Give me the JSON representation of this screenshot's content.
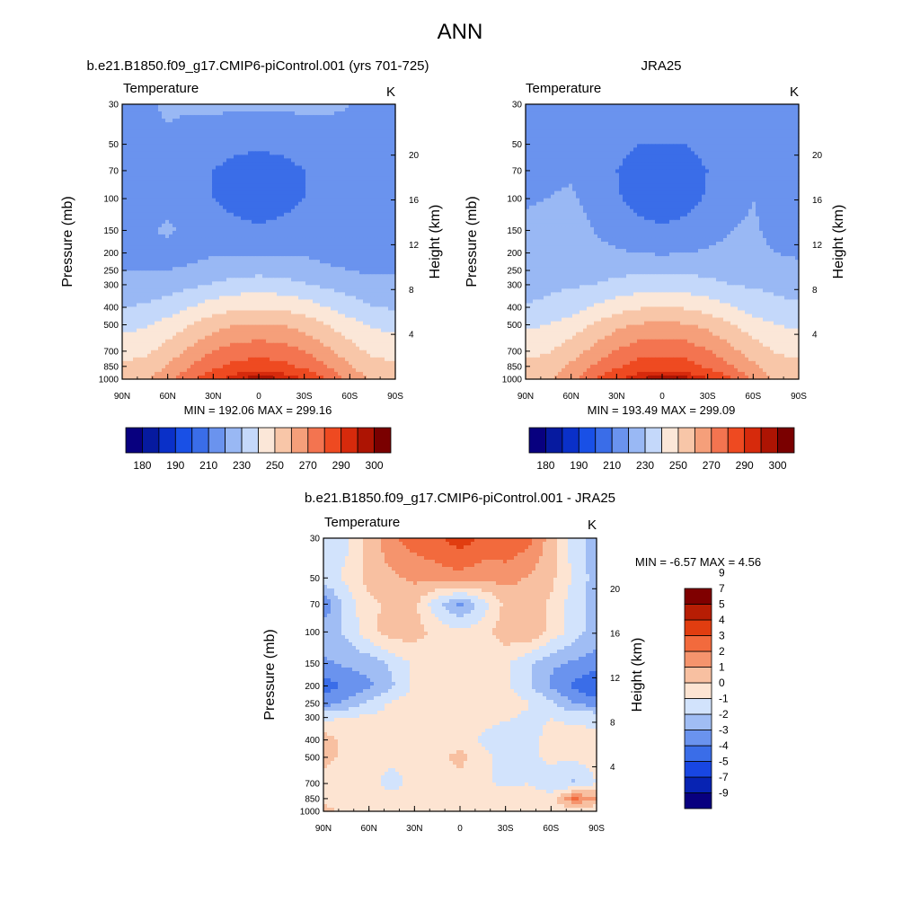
{
  "figure": {
    "title": "ANN",
    "colors": {
      "abs_palette": [
        "#08007f",
        "#061a9f",
        "#0a30c8",
        "#1950e6",
        "#3a6de8",
        "#6a93ee",
        "#99b8f4",
        "#c4d8fa",
        "#fbe7d8",
        "#f8c6a8",
        "#f59f7a",
        "#f37450",
        "#ee4a21",
        "#d62a0c",
        "#ad1403",
        "#7a0000"
      ],
      "diff_palette": [
        "#08007f",
        "#0723b3",
        "#1846e2",
        "#3a6de8",
        "#6a93ee",
        "#a0bdf4",
        "#d2e3fc",
        "#fde4d2",
        "#f8c0a1",
        "#f5946d",
        "#f26a3d",
        "#e13d10",
        "#b71d04",
        "#7f0000"
      ]
    },
    "panels": [
      {
        "title": "b.e21.B1850.f09_g17.CMIP6-piControl.001 (yrs 701-725)",
        "left_label": "Temperature",
        "right_label": "K",
        "min_max": "MIN = 192.06  MAX = 299.16"
      },
      {
        "title": "JRA25",
        "left_label": "Temperature",
        "right_label": "K",
        "min_max": "MIN = 193.49  MAX = 299.09"
      },
      {
        "title": "b.e21.B1850.f09_g17.CMIP6-piControl.001 - JRA25",
        "left_label": "Temperature",
        "right_label": "K",
        "min_max": "MIN =  -6.57  MAX =   4.56"
      }
    ]
  },
  "chart_data": [
    {
      "type": "heatmap",
      "name": "model",
      "xlabel": "",
      "ylabel": "Pressure (mb)",
      "y2label": "Height (km)",
      "x_ticks": [
        "90N",
        "60N",
        "30N",
        "0",
        "30S",
        "60S",
        "90S"
      ],
      "y_ticks": [
        30,
        50,
        70,
        100,
        150,
        200,
        250,
        300,
        400,
        500,
        700,
        850,
        1000
      ],
      "y2_ticks": [
        4,
        8,
        12,
        16,
        20
      ],
      "xlim": [
        90,
        -90
      ],
      "ylim": [
        1000,
        30
      ],
      "y_scale": "log",
      "colorbar_labels": [
        180,
        190,
        210,
        230,
        250,
        270,
        290,
        300
      ],
      "values_grid": {
        "lats": [
          90,
          75,
          60,
          45,
          30,
          15,
          0,
          -15,
          -30,
          -45,
          -60,
          -75,
          -90
        ],
        "plev": [
          30,
          50,
          70,
          100,
          150,
          200,
          250,
          300,
          400,
          500,
          700,
          850,
          1000
        ],
        "rows": [
          [
            218,
            219,
            221,
            221,
            222,
            222,
            222,
            222,
            222,
            221,
            220,
            214,
            213
          ],
          [
            218,
            218,
            219,
            217,
            214,
            212,
            212,
            212,
            214,
            217,
            219,
            214,
            213
          ],
          [
            218,
            218,
            218,
            215,
            210,
            207,
            205,
            207,
            210,
            215,
            219,
            214,
            213
          ],
          [
            218,
            218,
            218,
            216,
            210,
            206,
            203,
            206,
            210,
            216,
            219,
            214,
            213
          ],
          [
            218,
            219,
            221,
            218,
            216,
            213,
            212,
            213,
            216,
            218,
            218,
            214,
            213
          ],
          [
            218,
            218,
            218,
            218,
            219,
            219,
            219,
            219,
            219,
            218,
            218,
            214,
            213
          ],
          [
            220,
            220,
            220,
            221,
            224,
            226,
            227,
            226,
            224,
            221,
            220,
            218,
            217
          ],
          [
            225,
            225,
            226,
            228,
            231,
            234,
            235,
            234,
            231,
            228,
            226,
            226,
            225
          ],
          [
            230,
            231,
            234,
            240,
            245,
            248,
            249,
            248,
            245,
            240,
            234,
            230,
            229
          ],
          [
            237,
            239,
            244,
            250,
            256,
            260,
            261,
            260,
            256,
            250,
            244,
            239,
            237
          ],
          [
            246,
            248,
            254,
            262,
            270,
            275,
            276,
            275,
            270,
            262,
            254,
            248,
            246
          ],
          [
            252,
            254,
            261,
            270,
            278,
            283,
            285,
            283,
            278,
            270,
            261,
            254,
            252
          ],
          [
            255,
            258,
            266,
            278,
            288,
            295,
            298,
            296,
            290,
            280,
            266,
            258,
            256
          ]
        ]
      },
      "min": 192.06,
      "max": 299.16
    },
    {
      "type": "heatmap",
      "name": "obs",
      "xlabel": "",
      "ylabel": "Pressure (mb)",
      "y2label": "Height (km)",
      "x_ticks": [
        "90N",
        "60N",
        "30N",
        "0",
        "30S",
        "60S",
        "90S"
      ],
      "y_ticks": [
        30,
        50,
        70,
        100,
        150,
        200,
        250,
        300,
        400,
        500,
        700,
        850,
        1000
      ],
      "y2_ticks": [
        4,
        8,
        12,
        16,
        20
      ],
      "xlim": [
        90,
        -90
      ],
      "ylim": [
        1000,
        30
      ],
      "y_scale": "log",
      "colorbar_labels": [
        180,
        190,
        210,
        230,
        250,
        270,
        290,
        300
      ],
      "values_grid": {
        "lats": [
          90,
          75,
          60,
          45,
          30,
          15,
          0,
          -15,
          -30,
          -45,
          -60,
          -75,
          -90
        ],
        "plev": [
          30,
          50,
          70,
          100,
          150,
          200,
          250,
          300,
          400,
          500,
          700,
          850,
          1000
        ],
        "rows": [
          [
            218,
            219,
            220,
            220,
            220,
            220,
            220,
            220,
            220,
            220,
            219,
            215,
            214
          ],
          [
            218,
            218,
            219,
            217,
            213,
            210,
            210,
            210,
            213,
            217,
            219,
            216,
            215
          ],
          [
            219,
            219,
            219,
            215,
            210,
            206,
            205,
            206,
            210,
            215,
            219,
            216,
            215
          ],
          [
            219,
            220,
            221,
            217,
            211,
            206,
            203,
            206,
            211,
            217,
            220,
            217,
            216
          ],
          [
            222,
            224,
            225,
            220,
            217,
            213,
            212,
            213,
            217,
            220,
            221,
            218,
            217
          ],
          [
            222,
            224,
            224,
            222,
            221,
            220,
            219,
            220,
            221,
            222,
            222,
            220,
            219
          ],
          [
            222,
            224,
            225,
            226,
            227,
            228,
            228,
            228,
            227,
            226,
            225,
            223,
            222
          ],
          [
            226,
            228,
            229,
            230,
            233,
            235,
            236,
            235,
            233,
            230,
            229,
            228,
            227
          ],
          [
            231,
            232,
            235,
            241,
            246,
            249,
            250,
            249,
            246,
            241,
            235,
            232,
            231
          ],
          [
            238,
            240,
            245,
            251,
            257,
            261,
            262,
            261,
            257,
            251,
            245,
            240,
            238
          ],
          [
            247,
            249,
            255,
            263,
            271,
            276,
            277,
            276,
            271,
            263,
            255,
            249,
            247
          ],
          [
            253,
            255,
            262,
            271,
            279,
            284,
            286,
            284,
            279,
            271,
            262,
            255,
            253
          ],
          [
            256,
            259,
            267,
            279,
            289,
            296,
            298,
            297,
            291,
            281,
            267,
            259,
            257
          ]
        ]
      },
      "min": 193.49,
      "max": 299.09
    },
    {
      "type": "heatmap",
      "name": "diff",
      "xlabel": "",
      "ylabel": "Pressure (mb)",
      "y2label": "Height (km)",
      "x_ticks": [
        "90N",
        "60N",
        "30N",
        "0",
        "30S",
        "60S",
        "90S"
      ],
      "y_ticks": [
        30,
        50,
        70,
        100,
        150,
        200,
        250,
        300,
        400,
        500,
        700,
        850,
        1000
      ],
      "y2_ticks": [
        4,
        8,
        12,
        16,
        20
      ],
      "xlim": [
        90,
        -90
      ],
      "ylim": [
        1000,
        30
      ],
      "y_scale": "log",
      "colorbar_labels": [
        -9,
        -7,
        -5,
        -4,
        -3,
        -2,
        -1,
        0,
        1,
        2,
        3,
        4,
        5,
        7,
        9
      ],
      "values_grid": {
        "lats": [
          90,
          75,
          60,
          45,
          30,
          15,
          0,
          -15,
          -30,
          -45,
          -60,
          -75,
          -90
        ],
        "plev": [
          30,
          50,
          70,
          100,
          150,
          200,
          250,
          300,
          400,
          500,
          700,
          850,
          1000
        ],
        "rows": [
          [
            -1.5,
            -1.2,
            0.3,
            1.8,
            2.5,
            2.8,
            3.6,
            2.8,
            3.0,
            2.4,
            0.5,
            -1.5,
            -2.5
          ],
          [
            -1.5,
            -0.8,
            0.4,
            0.8,
            1.2,
            1.5,
            1.6,
            1.4,
            1.3,
            0.9,
            0.3,
            -1.2,
            -2.5
          ],
          [
            -3.8,
            -1.5,
            -0.3,
            0.3,
            0.2,
            -1.8,
            -3.2,
            -1.5,
            0.3,
            0.8,
            -0.2,
            -1.5,
            -2.5
          ],
          [
            -2.5,
            -1.8,
            -0.4,
            0.6,
            0.4,
            -0.3,
            -0.8,
            -0.4,
            0.6,
            0.9,
            -0.3,
            -1.5,
            -2.5
          ],
          [
            -3.2,
            -2.8,
            -2.6,
            -1.8,
            -0.8,
            -0.4,
            -0.3,
            -0.5,
            -0.8,
            -1.8,
            -2.8,
            -3.2,
            -3.5
          ],
          [
            -4.6,
            -3.8,
            -3.2,
            -2.2,
            -0.8,
            -0.4,
            -0.2,
            -0.4,
            -0.8,
            -1.8,
            -3.2,
            -4.2,
            -5.2
          ],
          [
            -3.5,
            -2.8,
            -1.8,
            -0.8,
            -0.4,
            -0.2,
            -0.2,
            -0.2,
            -0.4,
            -0.9,
            -1.8,
            -3.0,
            -3.5
          ],
          [
            -1.2,
            -1.0,
            -0.8,
            -0.7,
            -0.6,
            -0.3,
            -0.3,
            -0.6,
            -0.9,
            -1.2,
            -1.0,
            -1.2,
            -1.2
          ],
          [
            0.5,
            -0.4,
            -0.4,
            -0.6,
            -0.6,
            -0.5,
            -0.6,
            -1.2,
            -1.6,
            -1.2,
            -0.8,
            -0.6,
            -0.8
          ],
          [
            0.4,
            -0.3,
            -0.6,
            -0.8,
            -0.5,
            -0.4,
            0.4,
            -0.7,
            -1.4,
            -1.2,
            -0.8,
            -0.8,
            -0.6
          ],
          [
            -0.5,
            -0.5,
            -0.7,
            -1.4,
            -0.7,
            -0.5,
            -0.5,
            -0.8,
            -1.2,
            -1.0,
            -1.6,
            -2.2,
            -1.0
          ],
          [
            -0.3,
            -0.2,
            -0.4,
            -0.6,
            -0.6,
            -0.5,
            -0.5,
            -0.4,
            -0.5,
            -0.6,
            -0.6,
            2.2,
            1.2
          ],
          [
            0.3,
            -0.3,
            -0.6,
            -0.6,
            -0.5,
            -0.2,
            -0.2,
            -0.2,
            -0.3,
            -0.8,
            -0.4,
            -1.0,
            -1.0
          ]
        ]
      },
      "min": -6.57,
      "max": 4.56
    }
  ]
}
